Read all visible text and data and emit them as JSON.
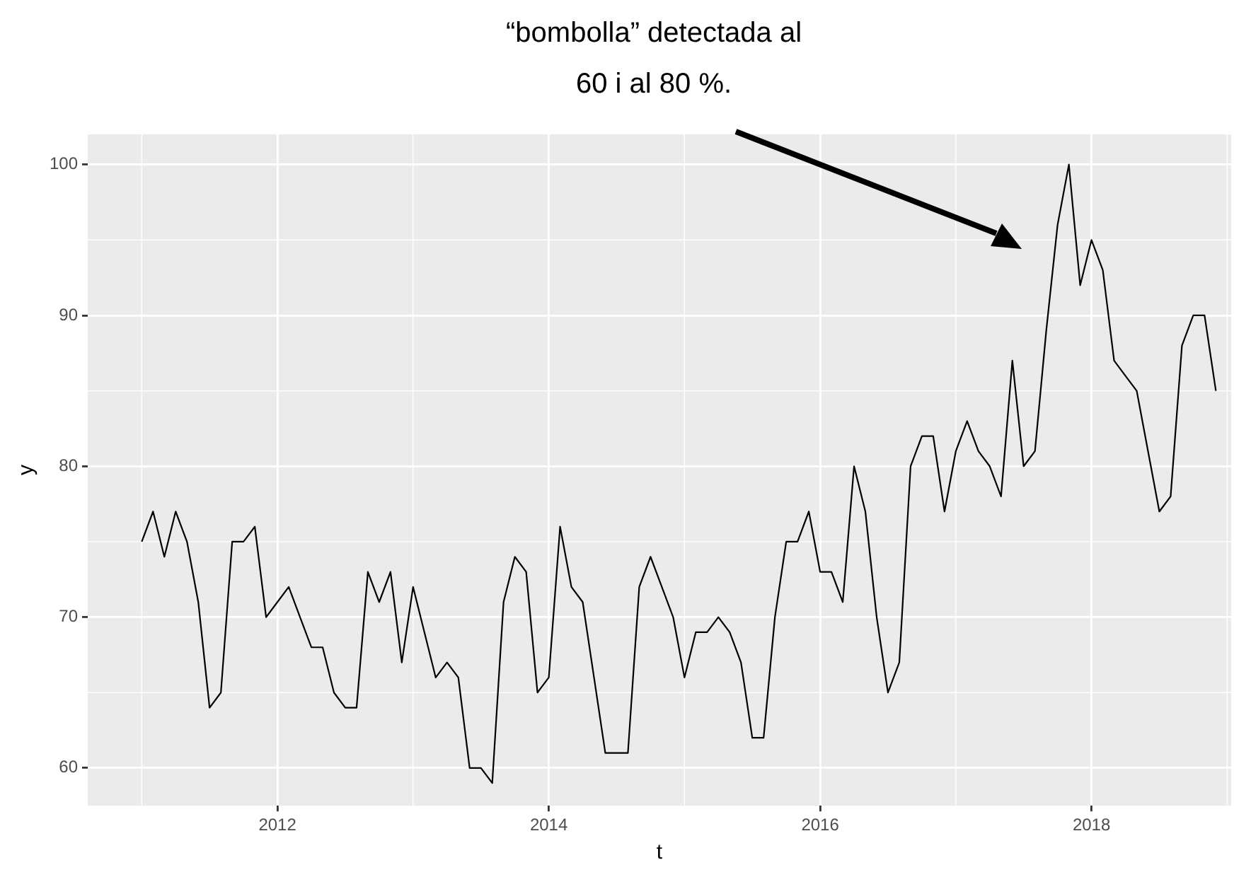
{
  "chart_data": {
    "type": "line",
    "xlabel": "t",
    "ylabel": "y",
    "x": [
      "2011-01",
      "2011-02",
      "2011-03",
      "2011-04",
      "2011-05",
      "2011-06",
      "2011-07",
      "2011-08",
      "2011-09",
      "2011-10",
      "2011-11",
      "2011-12",
      "2012-01",
      "2012-02",
      "2012-03",
      "2012-04",
      "2012-05",
      "2012-06",
      "2012-07",
      "2012-08",
      "2012-09",
      "2012-10",
      "2012-11",
      "2012-12",
      "2013-01",
      "2013-02",
      "2013-03",
      "2013-04",
      "2013-05",
      "2013-06",
      "2013-07",
      "2013-08",
      "2013-09",
      "2013-10",
      "2013-11",
      "2013-12",
      "2014-01",
      "2014-02",
      "2014-03",
      "2014-04",
      "2014-05",
      "2014-06",
      "2014-07",
      "2014-08",
      "2014-09",
      "2014-10",
      "2014-11",
      "2014-12",
      "2015-01",
      "2015-02",
      "2015-03",
      "2015-04",
      "2015-05",
      "2015-06",
      "2015-07",
      "2015-08",
      "2015-09",
      "2015-10",
      "2015-11",
      "2015-12",
      "2016-01",
      "2016-02",
      "2016-03",
      "2016-04",
      "2016-05",
      "2016-06",
      "2016-07",
      "2016-08",
      "2016-09",
      "2016-10",
      "2016-11",
      "2016-12",
      "2017-01",
      "2017-02",
      "2017-03",
      "2017-04",
      "2017-05",
      "2017-06",
      "2017-07",
      "2017-08",
      "2017-09",
      "2017-10",
      "2017-11",
      "2017-12",
      "2018-01",
      "2018-02",
      "2018-03",
      "2018-04",
      "2018-05",
      "2018-06",
      "2018-07",
      "2018-08",
      "2018-09",
      "2018-10",
      "2018-11",
      "2018-12"
    ],
    "series": [
      {
        "color": "#000000",
        "values": [
          75,
          77,
          74,
          77,
          75,
          71,
          64,
          65,
          75,
          75,
          76,
          70,
          71,
          72,
          70,
          68,
          68,
          65,
          64,
          64,
          73,
          71,
          73,
          67,
          72,
          69,
          66,
          67,
          66,
          60,
          60,
          59,
          71,
          74,
          73,
          65,
          66,
          76,
          72,
          71,
          66,
          61,
          61,
          61,
          72,
          74,
          72,
          70,
          66,
          69,
          69,
          70,
          69,
          67,
          62,
          62,
          70,
          75,
          75,
          77,
          73,
          73,
          71,
          80,
          77,
          70,
          65,
          67,
          80,
          82,
          82,
          77,
          81,
          83,
          81,
          80,
          78,
          87,
          80,
          81,
          89,
          96,
          100,
          92,
          95,
          93,
          87,
          86,
          85,
          81,
          77,
          78,
          88,
          90,
          90,
          85
        ]
      }
    ],
    "xlim": [
      "2010-08-08",
      "2019-01-12"
    ],
    "ylim": [
      57.5,
      102
    ],
    "xticks": [
      "2012",
      "2014",
      "2016",
      "2018"
    ],
    "yticks": [
      60,
      70,
      80,
      90,
      100
    ],
    "grid": true,
    "legend": false,
    "marker": "none",
    "line_style": "solid",
    "annotations": [
      "“bombolla” detectada al\n60 i al 80 %."
    ]
  }
}
